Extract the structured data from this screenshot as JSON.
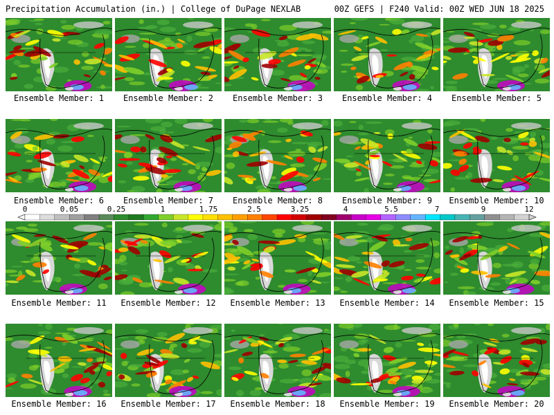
{
  "header": {
    "left": "Precipitation Accumulation (in.) | College of DuPage NEXLAB",
    "right": "00Z GEFS | F240 Valid: 00Z WED JUN 18 2025"
  },
  "panels": [
    {
      "label": "Ensemble Member: 1"
    },
    {
      "label": "Ensemble Member: 2"
    },
    {
      "label": "Ensemble Member: 3"
    },
    {
      "label": "Ensemble Member: 4"
    },
    {
      "label": "Ensemble Member: 5"
    },
    {
      "label": "Ensemble Member: 6"
    },
    {
      "label": "Ensemble Member: 7"
    },
    {
      "label": "Ensemble Member: 8"
    },
    {
      "label": "Ensemble Member: 9"
    },
    {
      "label": "Ensemble Member: 10"
    },
    {
      "label": "Ensemble Member: 11"
    },
    {
      "label": "Ensemble Member: 12"
    },
    {
      "label": "Ensemble Member: 13"
    },
    {
      "label": "Ensemble Member: 14"
    },
    {
      "label": "Ensemble Member: 15"
    },
    {
      "label": "Ensemble Member: 16"
    },
    {
      "label": "Ensemble Member: 17"
    },
    {
      "label": "Ensemble Member: 18"
    },
    {
      "label": "Ensemble Member: 19"
    },
    {
      "label": "Ensemble Member: 20"
    }
  ],
  "colorbar": {
    "tick_labels": [
      "0",
      "0.05",
      "0.25",
      "1",
      "1.75",
      "2.5",
      "3.25",
      "4",
      "5.5",
      "7",
      "9",
      "12"
    ],
    "colors": [
      "#ffffff",
      "#dcdcdc",
      "#bebebe",
      "#a0a0a0",
      "#7f7f7f",
      "#5a8a5a",
      "#2e8b2e",
      "#1f7a1f",
      "#32a832",
      "#7fcf2a",
      "#c8e628",
      "#ffff00",
      "#ffe000",
      "#ffc000",
      "#ffa000",
      "#ff7f00",
      "#ff4500",
      "#ff0000",
      "#d20000",
      "#a00000",
      "#800020",
      "#a0006e",
      "#c800c8",
      "#e600e6",
      "#b464ff",
      "#8c8cff",
      "#64b4ff",
      "#00e6ff",
      "#00c8c8",
      "#46b4b4",
      "#64a0a0",
      "#909090",
      "#b4b4b4",
      "#d2d2d2"
    ]
  }
}
